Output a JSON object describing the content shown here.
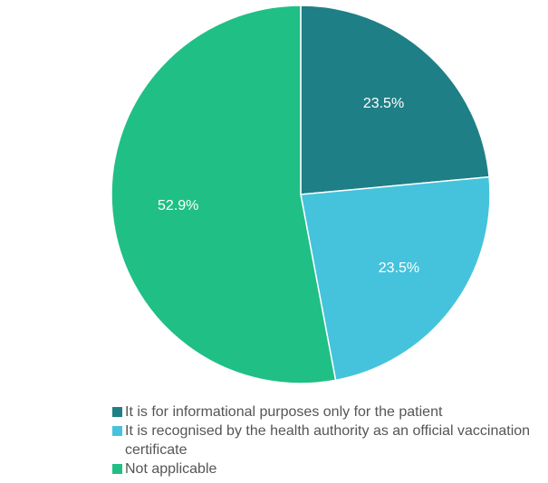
{
  "chart_data": {
    "type": "pie",
    "categories": [
      "It is for informational purposes only for the patient",
      "It is recognised by the health authority as an official vaccination certificate",
      "Not applicable"
    ],
    "values": [
      23.5,
      23.5,
      52.9
    ],
    "value_labels": [
      "23.5%",
      "23.5%",
      "52.9%"
    ],
    "colors": [
      "#1f7f86",
      "#45c3dc",
      "#20bf86"
    ],
    "legend": "bottom"
  }
}
